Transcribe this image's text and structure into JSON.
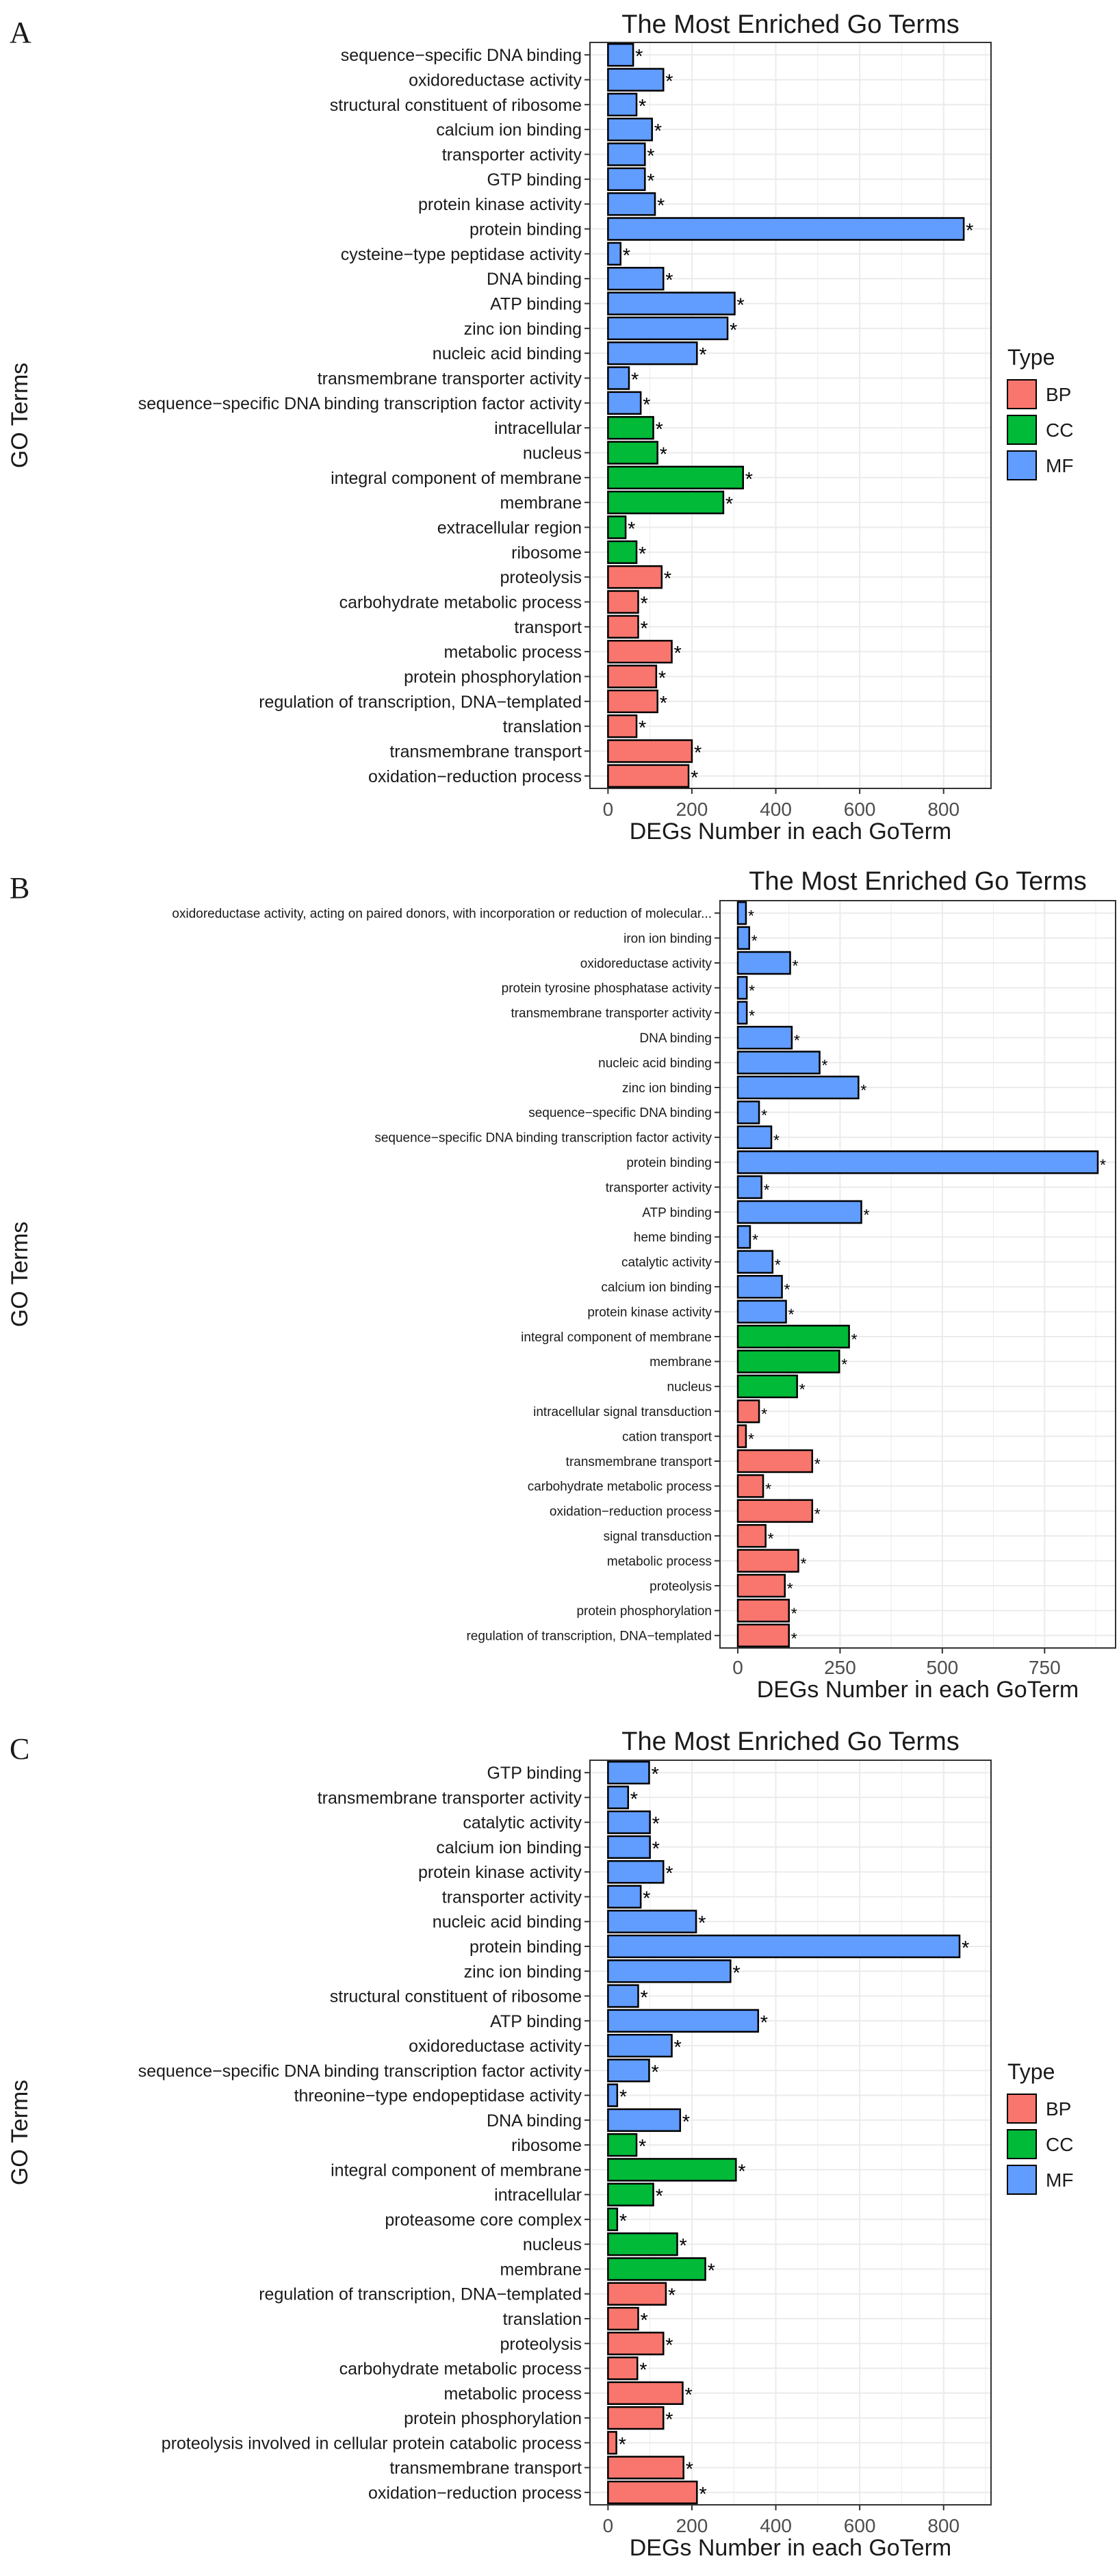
{
  "colors": {
    "BP": "#F8766D",
    "CC": "#00BA38",
    "MF": "#619CFF",
    "grid": "#EBEBEB",
    "panel_border": "#333333",
    "text": "#1A1A1A"
  },
  "legend": {
    "title": "Type",
    "items": [
      {
        "key": "BP",
        "label": "BP"
      },
      {
        "key": "CC",
        "label": "CC"
      },
      {
        "key": "MF",
        "label": "MF"
      }
    ]
  },
  "chart_data": [
    {
      "panel_letter": "A",
      "type": "bar",
      "orientation": "horizontal",
      "title": "The Most Enriched Go Terms",
      "xlabel": "DEGs Number in each GoTerm",
      "ylabel": "GO Terms",
      "xlim": [
        0,
        870
      ],
      "xticks": [
        0,
        200,
        400,
        600,
        800
      ],
      "significance_marker": "*",
      "bars": [
        {
          "term": "sequence−specific DNA binding",
          "value": 60,
          "type": "MF"
        },
        {
          "term": "oxidoreductase activity",
          "value": 132,
          "type": "MF"
        },
        {
          "term": "structural constituent of ribosome",
          "value": 68,
          "type": "MF"
        },
        {
          "term": "calcium ion binding",
          "value": 105,
          "type": "MF"
        },
        {
          "term": "transporter activity",
          "value": 88,
          "type": "MF"
        },
        {
          "term": "GTP binding",
          "value": 88,
          "type": "MF"
        },
        {
          "term": "protein kinase activity",
          "value": 112,
          "type": "MF"
        },
        {
          "term": "protein binding",
          "value": 848,
          "type": "MF"
        },
        {
          "term": "cysteine−type peptidase activity",
          "value": 30,
          "type": "MF"
        },
        {
          "term": "DNA binding",
          "value": 132,
          "type": "MF"
        },
        {
          "term": "ATP binding",
          "value": 302,
          "type": "MF"
        },
        {
          "term": "zinc ion binding",
          "value": 285,
          "type": "MF"
        },
        {
          "term": "nucleic acid binding",
          "value": 212,
          "type": "MF"
        },
        {
          "term": "transmembrane transporter activity",
          "value": 50,
          "type": "MF"
        },
        {
          "term": "sequence−specific DNA binding transcription factor activity",
          "value": 78,
          "type": "MF"
        },
        {
          "term": "intracellular",
          "value": 108,
          "type": "CC"
        },
        {
          "term": "nucleus",
          "value": 118,
          "type": "CC"
        },
        {
          "term": "integral component of membrane",
          "value": 322,
          "type": "CC"
        },
        {
          "term": "membrane",
          "value": 275,
          "type": "CC"
        },
        {
          "term": "extracellular region",
          "value": 42,
          "type": "CC"
        },
        {
          "term": "ribosome",
          "value": 68,
          "type": "CC"
        },
        {
          "term": "proteolysis",
          "value": 128,
          "type": "BP"
        },
        {
          "term": "carbohydrate metabolic process",
          "value": 72,
          "type": "BP"
        },
        {
          "term": "transport",
          "value": 72,
          "type": "BP"
        },
        {
          "term": "metabolic process",
          "value": 152,
          "type": "BP"
        },
        {
          "term": "protein phosphorylation",
          "value": 115,
          "type": "BP"
        },
        {
          "term": "regulation of transcription, DNA−templated",
          "value": 118,
          "type": "BP"
        },
        {
          "term": "translation",
          "value": 68,
          "type": "BP"
        },
        {
          "term": "transmembrane transport",
          "value": 200,
          "type": "BP"
        },
        {
          "term": "oxidation−reduction process",
          "value": 192,
          "type": "BP"
        }
      ]
    },
    {
      "panel_letter": "B",
      "type": "bar",
      "orientation": "horizontal",
      "title": "The Most Enriched Go Terms",
      "xlabel": "DEGs Number in each GoTerm",
      "ylabel": "GO Terms",
      "xlim": [
        0,
        880
      ],
      "xticks": [
        0,
        250,
        500,
        750
      ],
      "significance_marker": "*",
      "bars": [
        {
          "term": "oxidoreductase activity, acting on paired donors, with incorporation or reduction of molecular...",
          "value": 20,
          "type": "MF"
        },
        {
          "term": "iron ion binding",
          "value": 28,
          "type": "MF"
        },
        {
          "term": "oxidoreductase activity",
          "value": 128,
          "type": "MF"
        },
        {
          "term": "protein tyrosine phosphatase activity",
          "value": 22,
          "type": "MF"
        },
        {
          "term": "transmembrane transporter activity",
          "value": 22,
          "type": "MF"
        },
        {
          "term": "DNA binding",
          "value": 132,
          "type": "MF"
        },
        {
          "term": "nucleic acid binding",
          "value": 200,
          "type": "MF"
        },
        {
          "term": "zinc ion binding",
          "value": 295,
          "type": "MF"
        },
        {
          "term": "sequence−specific DNA binding",
          "value": 52,
          "type": "MF"
        },
        {
          "term": "sequence−specific DNA binding transcription factor activity",
          "value": 82,
          "type": "MF"
        },
        {
          "term": "protein binding",
          "value": 880,
          "type": "MF"
        },
        {
          "term": "transporter activity",
          "value": 58,
          "type": "MF"
        },
        {
          "term": "ATP binding",
          "value": 302,
          "type": "MF"
        },
        {
          "term": "heme binding",
          "value": 30,
          "type": "MF"
        },
        {
          "term": "catalytic activity",
          "value": 85,
          "type": "MF"
        },
        {
          "term": "calcium ion binding",
          "value": 108,
          "type": "MF"
        },
        {
          "term": "protein kinase activity",
          "value": 118,
          "type": "MF"
        },
        {
          "term": "integral component of membrane",
          "value": 272,
          "type": "CC"
        },
        {
          "term": "membrane",
          "value": 248,
          "type": "CC"
        },
        {
          "term": "nucleus",
          "value": 145,
          "type": "CC"
        },
        {
          "term": "intracellular signal transduction",
          "value": 52,
          "type": "BP"
        },
        {
          "term": "cation transport",
          "value": 20,
          "type": "BP"
        },
        {
          "term": "transmembrane transport",
          "value": 182,
          "type": "BP"
        },
        {
          "term": "carbohydrate metabolic process",
          "value": 62,
          "type": "BP"
        },
        {
          "term": "oxidation−reduction process",
          "value": 182,
          "type": "BP"
        },
        {
          "term": "signal transduction",
          "value": 68,
          "type": "BP"
        },
        {
          "term": "metabolic process",
          "value": 148,
          "type": "BP"
        },
        {
          "term": "proteolysis",
          "value": 115,
          "type": "BP"
        },
        {
          "term": "protein phosphorylation",
          "value": 125,
          "type": "BP"
        },
        {
          "term": "regulation of transcription, DNA−templated",
          "value": 125,
          "type": "BP"
        }
      ]
    },
    {
      "panel_letter": "C",
      "type": "bar",
      "orientation": "horizontal",
      "title": "The Most Enriched Go Terms",
      "xlabel": "DEGs Number in each GoTerm",
      "ylabel": "GO Terms",
      "xlim": [
        0,
        870
      ],
      "xticks": [
        0,
        200,
        400,
        600,
        800
      ],
      "significance_marker": "*",
      "bars": [
        {
          "term": "GTP binding",
          "value": 98,
          "type": "MF"
        },
        {
          "term": "transmembrane transporter activity",
          "value": 48,
          "type": "MF"
        },
        {
          "term": "catalytic activity",
          "value": 100,
          "type": "MF"
        },
        {
          "term": "calcium ion binding",
          "value": 100,
          "type": "MF"
        },
        {
          "term": "protein kinase activity",
          "value": 132,
          "type": "MF"
        },
        {
          "term": "transporter activity",
          "value": 78,
          "type": "MF"
        },
        {
          "term": "nucleic acid binding",
          "value": 210,
          "type": "MF"
        },
        {
          "term": "protein binding",
          "value": 838,
          "type": "MF"
        },
        {
          "term": "zinc ion binding",
          "value": 292,
          "type": "MF"
        },
        {
          "term": "structural constituent of ribosome",
          "value": 72,
          "type": "MF"
        },
        {
          "term": "ATP binding",
          "value": 358,
          "type": "MF"
        },
        {
          "term": "oxidoreductase activity",
          "value": 152,
          "type": "MF"
        },
        {
          "term": "sequence−specific DNA binding transcription factor activity",
          "value": 98,
          "type": "MF"
        },
        {
          "term": "threonine−type endopeptidase activity",
          "value": 22,
          "type": "MF"
        },
        {
          "term": "DNA binding",
          "value": 172,
          "type": "MF"
        },
        {
          "term": "ribosome",
          "value": 68,
          "type": "CC"
        },
        {
          "term": "integral component of membrane",
          "value": 305,
          "type": "CC"
        },
        {
          "term": "intracellular",
          "value": 108,
          "type": "CC"
        },
        {
          "term": "proteasome core complex",
          "value": 22,
          "type": "CC"
        },
        {
          "term": "nucleus",
          "value": 165,
          "type": "CC"
        },
        {
          "term": "membrane",
          "value": 232,
          "type": "CC"
        },
        {
          "term": "regulation of transcription, DNA−templated",
          "value": 138,
          "type": "BP"
        },
        {
          "term": "translation",
          "value": 72,
          "type": "BP"
        },
        {
          "term": "proteolysis",
          "value": 132,
          "type": "BP"
        },
        {
          "term": "carbohydrate metabolic process",
          "value": 70,
          "type": "BP"
        },
        {
          "term": "metabolic process",
          "value": 178,
          "type": "BP"
        },
        {
          "term": "protein phosphorylation",
          "value": 132,
          "type": "BP"
        },
        {
          "term": "proteolysis involved in cellular protein catabolic process",
          "value": 20,
          "type": "BP"
        },
        {
          "term": "transmembrane transport",
          "value": 180,
          "type": "BP"
        },
        {
          "term": "oxidation−reduction process",
          "value": 212,
          "type": "BP"
        }
      ]
    }
  ]
}
